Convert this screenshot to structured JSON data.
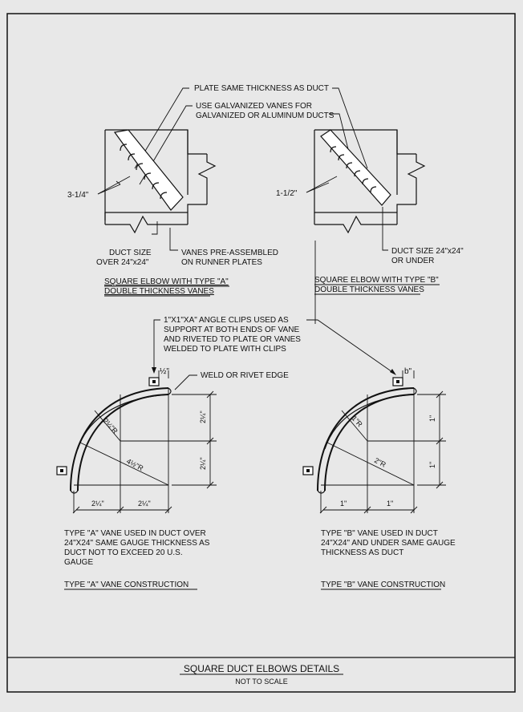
{
  "plan_callouts": {
    "plate_same_thickness": "PLATE SAME THICKNESS AS DUCT",
    "galv_vanes_line1": "USE GALVANIZED VANES FOR",
    "galv_vanes_line2": "GALVANIZED OR ALUMINUM DUCTS"
  },
  "detail_a_plan": {
    "dim": "3-1/4\"",
    "duct_size_line1": "DUCT SIZE",
    "duct_size_line2": "OVER 24\"x24\"",
    "vanes_line1": "VANES PRE-ASSEMBLED",
    "vanes_line2": "ON RUNNER PLATES",
    "caption_line1": "SQUARE ELBOW WITH TYPE \"A\"",
    "caption_line2": "DOUBLE THICKNESS VANES"
  },
  "detail_b_plan": {
    "dim": "1-1/2\"",
    "duct_size_line1": "DUCT SIZE 24\"x24\"",
    "duct_size_line2": "OR UNDER",
    "caption_line1": "SQUARE ELBOW WITH TYPE \"B\"",
    "caption_line2": "DOUBLE THICKNESS VANES"
  },
  "angle_clips": {
    "line1": "1\"X1\"XA\" ANGLE CLIPS USED AS",
    "line2": "SUPPORT AT BOTH ENDS OF VANE",
    "line3": "AND RIVETED TO PLATE OR VANES",
    "line4": "WELDED TO PLATE WITH CLIPS"
  },
  "weld_label": "WELD OR RIVET EDGE",
  "vane_a": {
    "top_dim": "½\"",
    "radius_small": "2¼\"R",
    "radius_large": "4½\"R",
    "vert_dim_upper": "2¼\"",
    "vert_dim_lower": "2¼\"",
    "horiz_dim_left": "2¼\"",
    "horiz_dim_right": "2¼\"",
    "desc_line1": "TYPE \"A\" VANE USED IN DUCT OVER",
    "desc_line2": "24\"X24\" SAME GAUGE THICKNESS AS",
    "desc_line3": "DUCT NOT TO EXCEED 20 U.S.",
    "desc_line4": "GAUGE",
    "caption": "TYPE \"A\" VANE CONSTRUCTION"
  },
  "vane_b": {
    "top_dim": "b\"",
    "radius_small": "1\"R",
    "radius_large": "2\"R",
    "vert_dim_upper": "1\"",
    "vert_dim_lower": "1\"",
    "horiz_dim_left": "1\"",
    "horiz_dim_right": "1\"",
    "desc_line1": "TYPE \"B\" VANE USED IN DUCT",
    "desc_line2": "24\"X24\" AND UNDER SAME GAUGE",
    "desc_line3": "THICKNESS AS DUCT",
    "caption": "TYPE \"B\" VANE CONSTRUCTION"
  },
  "title_block": {
    "title": "SQUARE DUCT ELBOWS DETAILS",
    "subtitle": "NOT TO SCALE"
  }
}
